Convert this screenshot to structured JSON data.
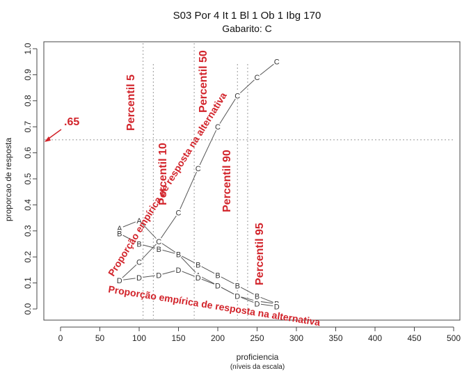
{
  "chart_data": {
    "type": "line",
    "title": "S03 Por 4 It 1  Bl 1 Ob 1 Ibg 170",
    "subtitle": "Gabarito:  C",
    "xlabel": "proficiencia",
    "xsublabel": "(níveis da escala)",
    "ylabel": "proporcao de resposta",
    "xlim": [
      0,
      500
    ],
    "ylim": [
      0,
      1
    ],
    "xticks": [
      0,
      50,
      100,
      150,
      200,
      250,
      300,
      350,
      400,
      450,
      500
    ],
    "yticks": [
      0.0,
      0.1,
      0.2,
      0.3,
      0.4,
      0.5,
      0.6,
      0.7,
      0.8,
      0.9,
      1.0
    ],
    "x": [
      75,
      100,
      125,
      150,
      175,
      200,
      225,
      250,
      275
    ],
    "series": [
      {
        "name": "A",
        "values": [
          0.31,
          0.34,
          0.26,
          0.21,
          0.13,
          0.09,
          0.05,
          0.03,
          0.02
        ]
      },
      {
        "name": "B",
        "values": [
          0.29,
          0.25,
          0.23,
          0.21,
          0.17,
          0.13,
          0.09,
          0.05,
          0.02
        ]
      },
      {
        "name": "C",
        "values": [
          0.11,
          0.18,
          0.26,
          0.37,
          0.54,
          0.7,
          0.82,
          0.89,
          0.95
        ]
      },
      {
        "name": "D",
        "values": [
          0.11,
          0.12,
          0.13,
          0.15,
          0.12,
          0.09,
          0.05,
          0.02,
          0.01
        ]
      }
    ],
    "reference_lines": {
      "horizontal": 0.65,
      "vertical": [
        105,
        118,
        170,
        225,
        238
      ]
    },
    "annotations": {
      "marker_65": ".65",
      "p5": "Percentil 5",
      "p10": "Percentil 10",
      "p50": "Percentil 50",
      "p90": "Percentil 90",
      "p95": "Percentil 95",
      "curve_correct": "Proporção empírica de resposta na alternativa",
      "curve_distractor": "Proporção empírica de resposta na alternativa"
    },
    "grid": false,
    "legend": "none"
  },
  "colors": {
    "series_line": "#555555",
    "annotation": "#d2232a",
    "reference": "#999999",
    "axis": "#444444"
  }
}
